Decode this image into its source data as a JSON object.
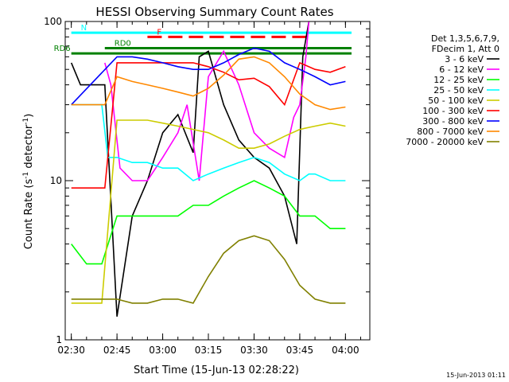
{
  "footer_date": "15-Jun-2013 01:11",
  "chart_data": {
    "type": "line",
    "title": "HESSI Observing Summary Count Rates",
    "xlabel": "Start Time (15-Jun-13 02:28:22)",
    "ylabel_main": "Count Rate (s",
    "ylabel_exp": "-1",
    "ylabel_rest": " detector",
    "ylabel_close": ")",
    "yscale": "log",
    "ylim": [
      1,
      100
    ],
    "xlim": [
      "02:28",
      "04:08"
    ],
    "x_ticks": [
      "02:30",
      "02:45",
      "03:00",
      "03:15",
      "03:30",
      "03:45",
      "04:00"
    ],
    "y_ticks": [
      "1",
      "10",
      "100"
    ],
    "legend_header": [
      "Det 1,3,5,6,7,9,",
      "FDecim 1, Att 0"
    ],
    "legend_position": "right",
    "series": [
      {
        "name": "3 - 6 keV",
        "color": "#000000",
        "x": [
          "02:30",
          "02:33",
          "02:41",
          "02:45",
          "02:50",
          "02:55",
          "03:00",
          "03:05",
          "03:10",
          "03:12",
          "03:15",
          "03:20",
          "03:25",
          "03:30",
          "03:35",
          "03:40",
          "03:44",
          "03:46",
          "03:48"
        ],
        "y": [
          55,
          40,
          40,
          1.4,
          6,
          10,
          20,
          26,
          15,
          60,
          65,
          30,
          18,
          14,
          12,
          8,
          4,
          60,
          100
        ]
      },
      {
        "name": "6 - 12 keV",
        "color": "#ff00ff",
        "x": [
          "02:41",
          "02:43",
          "02:46",
          "02:50",
          "02:55",
          "03:00",
          "03:05",
          "03:08",
          "03:12",
          "03:15",
          "03:20",
          "03:25",
          "03:30",
          "03:35",
          "03:40",
          "03:43",
          "03:45",
          "03:47",
          "03:48"
        ],
        "y": [
          55,
          40,
          12,
          10,
          10,
          14,
          20,
          30,
          10,
          45,
          65,
          40,
          20,
          16,
          14,
          25,
          30,
          60,
          100
        ]
      },
      {
        "name": "12 - 25 keV",
        "color": "#00ff00",
        "x": [
          "02:30",
          "02:35",
          "02:40",
          "02:45",
          "02:50",
          "02:55",
          "03:00",
          "03:05",
          "03:10",
          "03:15",
          "03:20",
          "03:25",
          "03:30",
          "03:35",
          "03:40",
          "03:45",
          "03:50",
          "03:55",
          "04:00"
        ],
        "y": [
          4,
          3,
          3,
          6,
          6,
          6,
          6,
          6,
          7,
          7,
          8,
          9,
          10,
          9,
          8,
          6,
          6,
          5,
          5
        ]
      },
      {
        "name": "25 - 50 keV",
        "color": "#00ffff",
        "x": [
          "02:30",
          "02:40",
          "02:42",
          "02:45",
          "02:50",
          "02:55",
          "03:00",
          "03:05",
          "03:10",
          "03:15",
          "03:20",
          "03:25",
          "03:30",
          "03:35",
          "03:40",
          "03:45",
          "03:48",
          "03:50",
          "03:55",
          "04:00"
        ],
        "y": [
          30,
          30,
          14,
          14,
          13,
          13,
          12,
          12,
          10,
          11,
          12,
          13,
          14,
          13,
          11,
          10,
          11,
          11,
          10,
          10
        ]
      },
      {
        "name": "50 - 100 keV",
        "color": "#cccc00",
        "x": [
          "02:30",
          "02:35",
          "02:40",
          "02:45",
          "02:50",
          "02:55",
          "03:00",
          "03:05",
          "03:10",
          "03:15",
          "03:20",
          "03:25",
          "03:30",
          "03:35",
          "03:40",
          "03:45",
          "03:50",
          "03:55",
          "04:00"
        ],
        "y": [
          1.7,
          1.7,
          1.7,
          24,
          24,
          24,
          23,
          22,
          21,
          20,
          18,
          16,
          16,
          17,
          19,
          21,
          22,
          23,
          22
        ]
      },
      {
        "name": "100 - 300 keV",
        "color": "#ff0000",
        "x": [
          "02:30",
          "02:32",
          "02:41",
          "02:45",
          "02:50",
          "02:55",
          "03:00",
          "03:05",
          "03:10",
          "03:15",
          "03:20",
          "03:25",
          "03:30",
          "03:35",
          "03:40",
          "03:45",
          "03:50",
          "03:55",
          "04:00"
        ],
        "y": [
          9,
          9,
          9,
          55,
          55,
          55,
          55,
          55,
          55,
          52,
          48,
          43,
          44,
          39,
          30,
          55,
          50,
          48,
          52
        ]
      },
      {
        "name": "300 - 800 keV",
        "color": "#0000ff",
        "x": [
          "02:30",
          "02:45",
          "02:50",
          "02:55",
          "03:00",
          "03:05",
          "03:10",
          "03:15",
          "03:20",
          "03:25",
          "03:30",
          "03:35",
          "03:40",
          "03:45",
          "03:50",
          "03:55",
          "04:00"
        ],
        "y": [
          30,
          60,
          60,
          58,
          55,
          52,
          50,
          50,
          55,
          62,
          68,
          65,
          55,
          50,
          45,
          40,
          42
        ]
      },
      {
        "name": "800 - 7000 keV",
        "color": "#ff8800",
        "x": [
          "02:30",
          "02:41",
          "02:45",
          "02:50",
          "02:55",
          "03:00",
          "03:05",
          "03:10",
          "03:15",
          "03:20",
          "03:25",
          "03:30",
          "03:35",
          "03:40",
          "03:45",
          "03:50",
          "03:55",
          "04:00"
        ],
        "y": [
          30,
          30,
          45,
          42,
          40,
          38,
          36,
          34,
          38,
          46,
          58,
          60,
          55,
          45,
          35,
          30,
          28,
          29
        ]
      },
      {
        "name": "7000 - 20000 keV",
        "color": "#808000",
        "x": [
          "02:30",
          "02:40",
          "02:45",
          "02:50",
          "02:55",
          "03:00",
          "03:05",
          "03:10",
          "03:15",
          "03:20",
          "03:25",
          "03:30",
          "03:35",
          "03:40",
          "03:45",
          "03:50",
          "03:55",
          "04:00"
        ],
        "y": [
          1.8,
          1.8,
          1.8,
          1.7,
          1.7,
          1.8,
          1.8,
          1.7,
          2.5,
          3.5,
          4.2,
          4.5,
          4.2,
          3.2,
          2.2,
          1.8,
          1.7,
          1.7
        ]
      }
    ],
    "annotations": [
      {
        "label": "N",
        "color": "#00ffff",
        "x_start": "02:30",
        "x_end": "04:02",
        "y": 85
      },
      {
        "label": "F",
        "color": "#ff0000",
        "x_start": "02:55",
        "x_end": "03:49",
        "y": 80
      },
      {
        "label": "RD0",
        "color": "#008000",
        "x_start": "02:41",
        "x_end": "04:02",
        "y": 68
      },
      {
        "label": "RD6",
        "color": "#008000",
        "x_start": "02:30",
        "x_end": "04:02",
        "y": 63
      }
    ]
  }
}
